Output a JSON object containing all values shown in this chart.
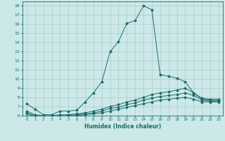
{
  "xlabel": "Humidex (Indice chaleur)",
  "ylabel": "",
  "bg_color": "#cce8e8",
  "grid_color": "#aacccc",
  "line_color": "#1a6b6b",
  "xlim": [
    -0.5,
    23.5
  ],
  "ylim": [
    6,
    18.5
  ],
  "yticks": [
    6,
    7,
    8,
    9,
    10,
    11,
    12,
    13,
    14,
    15,
    16,
    17,
    18
  ],
  "xticks": [
    0,
    1,
    2,
    3,
    4,
    5,
    6,
    7,
    8,
    9,
    10,
    11,
    12,
    13,
    14,
    15,
    16,
    17,
    18,
    19,
    20,
    21,
    22,
    23
  ],
  "series": [
    {
      "x": [
        0,
        1,
        2,
        3,
        4,
        5,
        6,
        7,
        8,
        9,
        10,
        11,
        12,
        13,
        14,
        15,
        16,
        17,
        18,
        19,
        20,
        21,
        22,
        23
      ],
      "y": [
        7.3,
        6.7,
        6.1,
        6.1,
        6.5,
        6.5,
        6.6,
        7.5,
        8.5,
        9.7,
        13.0,
        14.1,
        16.1,
        16.4,
        18.0,
        17.6,
        10.5,
        10.3,
        10.1,
        9.7,
        8.5,
        7.9,
        7.8,
        7.8
      ]
    },
    {
      "x": [
        0,
        1,
        2,
        3,
        4,
        5,
        6,
        7,
        8,
        9,
        10,
        11,
        12,
        13,
        14,
        15,
        16,
        17,
        18,
        19,
        20,
        21,
        22,
        23
      ],
      "y": [
        6.5,
        6.1,
        6.0,
        6.0,
        6.1,
        6.1,
        6.2,
        6.3,
        6.5,
        6.7,
        7.0,
        7.2,
        7.5,
        7.7,
        8.0,
        8.3,
        8.5,
        8.6,
        8.8,
        9.0,
        8.5,
        7.8,
        7.7,
        7.7
      ]
    },
    {
      "x": [
        0,
        1,
        2,
        3,
        4,
        5,
        6,
        7,
        8,
        9,
        10,
        11,
        12,
        13,
        14,
        15,
        16,
        17,
        18,
        19,
        20,
        21,
        22,
        23
      ],
      "y": [
        6.3,
        6.0,
        5.9,
        5.9,
        6.0,
        6.0,
        6.1,
        6.2,
        6.3,
        6.5,
        6.8,
        6.9,
        7.2,
        7.4,
        7.7,
        7.9,
        8.1,
        8.2,
        8.3,
        8.5,
        8.2,
        7.7,
        7.6,
        7.6
      ]
    },
    {
      "x": [
        0,
        1,
        2,
        3,
        4,
        5,
        6,
        7,
        8,
        9,
        10,
        11,
        12,
        13,
        14,
        15,
        16,
        17,
        18,
        19,
        20,
        21,
        22,
        23
      ],
      "y": [
        6.2,
        5.9,
        5.8,
        5.8,
        5.9,
        5.9,
        6.0,
        6.1,
        6.2,
        6.3,
        6.5,
        6.7,
        6.9,
        7.1,
        7.3,
        7.5,
        7.7,
        7.8,
        7.9,
        8.0,
        7.8,
        7.5,
        7.5,
        7.5
      ]
    }
  ]
}
